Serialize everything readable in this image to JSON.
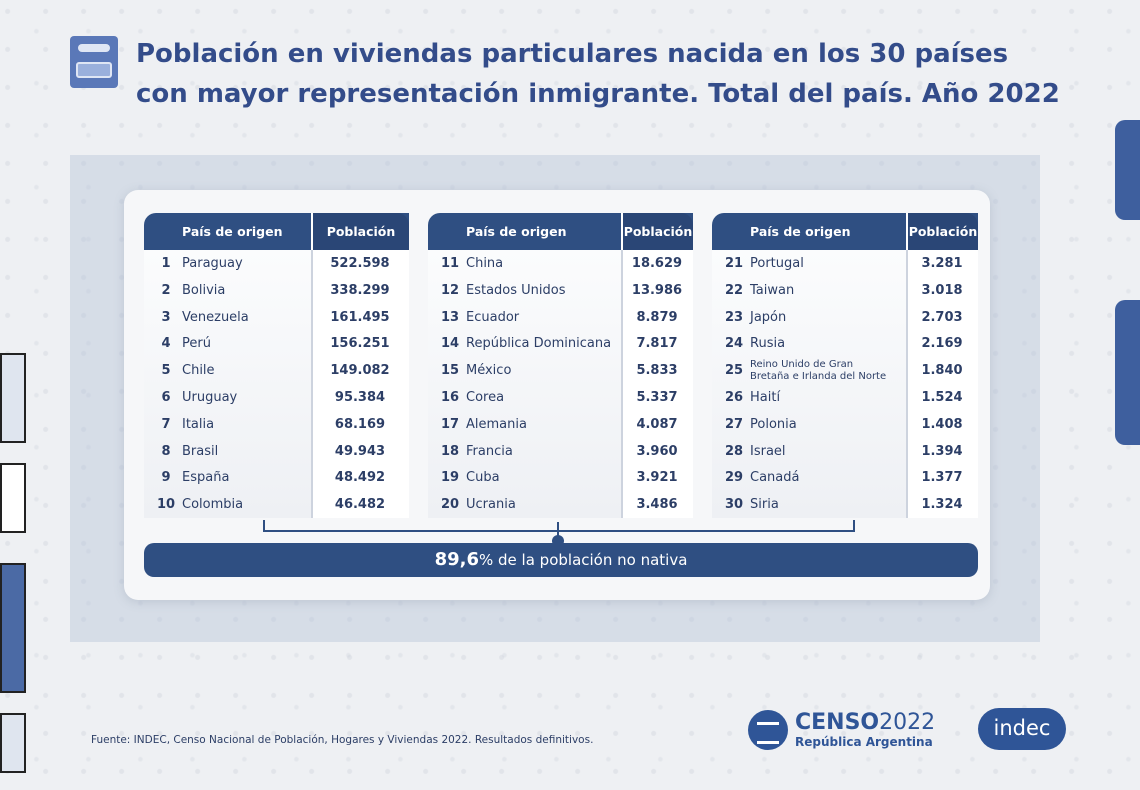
{
  "title": {
    "line1": "Población en viviendas particulares nacida en los 30 países",
    "line2": "con mayor representación inmigrante. Total del país. Año 2022"
  },
  "table_headers": {
    "country": "País de origen",
    "population": "Población"
  },
  "tables": [
    {
      "rows": [
        {
          "rank": "1",
          "country": "Paraguay",
          "population": "522.598"
        },
        {
          "rank": "2",
          "country": "Bolivia",
          "population": "338.299"
        },
        {
          "rank": "3",
          "country": "Venezuela",
          "population": "161.495"
        },
        {
          "rank": "4",
          "country": "Perú",
          "population": "156.251"
        },
        {
          "rank": "5",
          "country": "Chile",
          "population": "149.082"
        },
        {
          "rank": "6",
          "country": "Uruguay",
          "population": "95.384"
        },
        {
          "rank": "7",
          "country": "Italia",
          "population": "68.169"
        },
        {
          "rank": "8",
          "country": "Brasil",
          "population": "49.943"
        },
        {
          "rank": "9",
          "country": "España",
          "population": "48.492"
        },
        {
          "rank": "10",
          "country": "Colombia",
          "population": "46.482"
        }
      ]
    },
    {
      "rows": [
        {
          "rank": "11",
          "country": "China",
          "population": "18.629"
        },
        {
          "rank": "12",
          "country": "Estados Unidos",
          "population": "13.986"
        },
        {
          "rank": "13",
          "country": "Ecuador",
          "population": "8.879"
        },
        {
          "rank": "14",
          "country": "República Dominicana",
          "population": "7.817"
        },
        {
          "rank": "15",
          "country": "México",
          "population": "5.833"
        },
        {
          "rank": "16",
          "country": "Corea",
          "population": "5.337"
        },
        {
          "rank": "17",
          "country": "Alemania",
          "population": "4.087"
        },
        {
          "rank": "18",
          "country": "Francia",
          "population": "3.960"
        },
        {
          "rank": "19",
          "country": "Cuba",
          "population": "3.921"
        },
        {
          "rank": "20",
          "country": "Ucrania",
          "population": "3.486"
        }
      ]
    },
    {
      "rows": [
        {
          "rank": "21",
          "country": "Portugal",
          "population": "3.281"
        },
        {
          "rank": "22",
          "country": "Taiwan",
          "population": "3.018"
        },
        {
          "rank": "23",
          "country": "Japón",
          "population": "2.703"
        },
        {
          "rank": "24",
          "country": "Rusia",
          "population": "2.169"
        },
        {
          "rank": "25",
          "country": "Reino Unido de Gran Bretaña e Irlanda del Norte",
          "population": "1.840",
          "country_line1": "Reino Unido de Gran",
          "country_line2": "Bretaña e Irlanda del Norte"
        },
        {
          "rank": "26",
          "country": "Haití",
          "population": "1.524"
        },
        {
          "rank": "27",
          "country": "Polonia",
          "population": "1.408"
        },
        {
          "rank": "28",
          "country": "Israel",
          "population": "1.394"
        },
        {
          "rank": "29",
          "country": "Canadá",
          "population": "1.377"
        },
        {
          "rank": "30",
          "country": "Siria",
          "population": "1.324"
        }
      ]
    }
  ],
  "summary": {
    "percent": "89,6",
    "text": "% de la población no nativa"
  },
  "footer": {
    "source": "Fuente: INDEC, Censo Nacional de Población, Hogares y Viviendas 2022. Resultados definitivos."
  },
  "logos": {
    "censo_word": "CENSO",
    "censo_year": "2022",
    "censo_sub": "República Argentina",
    "indec": "indec"
  },
  "colors": {
    "primary": "#2f4f82",
    "title": "#334c8a",
    "background": "#eef0f3"
  }
}
